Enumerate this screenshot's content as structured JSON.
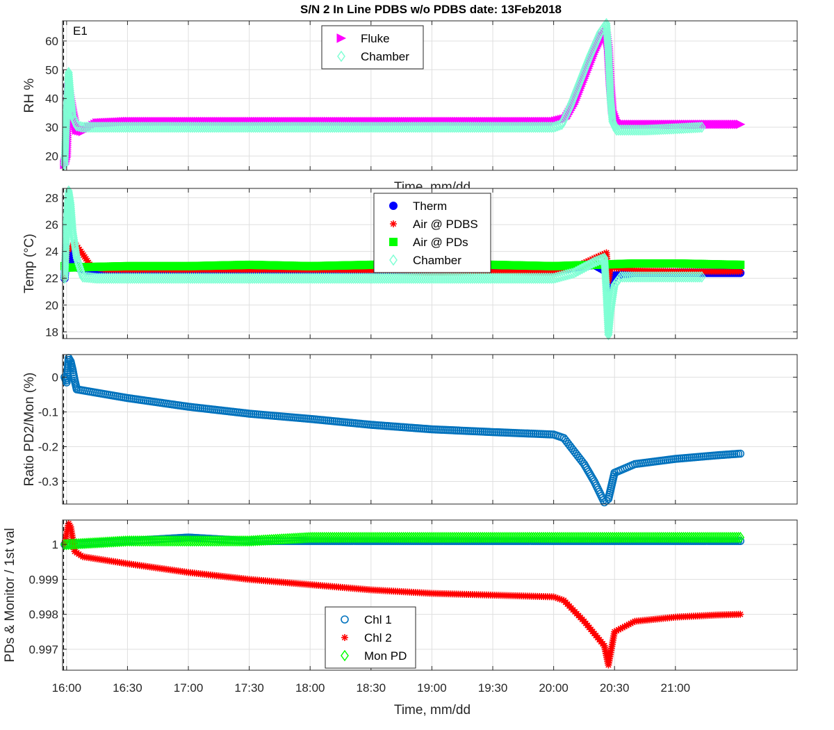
{
  "figure": {
    "title": "S/N 2 In Line PDBS w/o PDBS date: 13Feb2018",
    "xlabel": "Time, mm/dd",
    "xticks": [
      "16:00",
      "16:30",
      "17:00",
      "17:30",
      "18:00",
      "18:30",
      "19:00",
      "19:30",
      "20:00",
      "20:30",
      "21:00"
    ],
    "colors": {
      "magenta": "#ff00ff",
      "aquamarine": "#7fffd4",
      "blue": "#0000ff",
      "red": "#ff0000",
      "green": "#00ff00",
      "steelblue": "#0072bd"
    }
  },
  "chart_data": [
    {
      "type": "scatter",
      "panel_label": "E1",
      "ylabel": "RH %",
      "xlabel_partial": "Time, mm/dd",
      "xlim": [
        "15:58",
        "22:00"
      ],
      "ylim": [
        15,
        67
      ],
      "yticks": [
        20,
        30,
        40,
        50,
        60
      ],
      "grid": true,
      "legend_position": "top-center",
      "series": [
        {
          "name": "Fluke",
          "marker": "triangle-right",
          "color": "#ff00ff",
          "points": [
            [
              "15:59",
              17
            ],
            [
              "16:00",
              20
            ],
            [
              "16:01",
              44
            ],
            [
              "16:02",
              40
            ],
            [
              "16:03",
              36
            ],
            [
              "16:05",
              29
            ],
            [
              "16:08",
              28.5
            ],
            [
              "16:15",
              31.5
            ],
            [
              "16:30",
              32
            ],
            [
              "17:00",
              32
            ],
            [
              "17:30",
              32
            ],
            [
              "18:00",
              32
            ],
            [
              "18:30",
              32
            ],
            [
              "19:00",
              32
            ],
            [
              "19:30",
              32
            ],
            [
              "20:00",
              32
            ],
            [
              "20:06",
              33
            ],
            [
              "20:10",
              38
            ],
            [
              "20:15",
              47
            ],
            [
              "20:20",
              56
            ],
            [
              "20:24",
              62
            ],
            [
              "20:26",
              63
            ],
            [
              "20:27",
              58
            ],
            [
              "20:28",
              45
            ],
            [
              "20:29",
              36
            ],
            [
              "20:31",
              32
            ],
            [
              "20:35",
              31
            ],
            [
              "21:00",
              31
            ],
            [
              "21:30",
              31
            ],
            [
              "21:32",
              31
            ]
          ]
        },
        {
          "name": "Chamber",
          "marker": "diamond-open",
          "color": "#7fffd4",
          "points": [
            [
              "15:59",
              17
            ],
            [
              "16:00",
              35
            ],
            [
              "16:01",
              49
            ],
            [
              "16:02",
              40
            ],
            [
              "16:03",
              34
            ],
            [
              "16:05",
              30.5
            ],
            [
              "16:08",
              30
            ],
            [
              "16:15",
              30
            ],
            [
              "16:30",
              30
            ],
            [
              "17:00",
              30
            ],
            [
              "17:30",
              30
            ],
            [
              "18:00",
              30
            ],
            [
              "18:30",
              30
            ],
            [
              "19:00",
              30
            ],
            [
              "19:30",
              30
            ],
            [
              "20:00",
              30
            ],
            [
              "20:04",
              31
            ],
            [
              "20:08",
              37
            ],
            [
              "20:13",
              46
            ],
            [
              "20:18",
              55
            ],
            [
              "20:23",
              63
            ],
            [
              "20:26",
              66
            ],
            [
              "20:27",
              56
            ],
            [
              "20:28",
              40
            ],
            [
              "20:29",
              32
            ],
            [
              "20:31",
              29
            ],
            [
              "20:35",
              29
            ],
            [
              "20:45",
              29
            ],
            [
              "21:00",
              29.5
            ],
            [
              "21:13",
              30
            ]
          ]
        }
      ]
    },
    {
      "type": "scatter",
      "ylabel": "Temp (°C)",
      "xlim": [
        "15:58",
        "22:00"
      ],
      "ylim": [
        17.5,
        28.7
      ],
      "yticks": [
        18,
        20,
        22,
        24,
        26,
        28
      ],
      "grid": true,
      "legend_position": "top-center",
      "series": [
        {
          "name": "Therm",
          "marker": "filled-circle",
          "color": "#0000ff",
          "points": [
            [
              "15:59",
              22
            ],
            [
              "16:00",
              24.3
            ],
            [
              "16:02",
              23.5
            ],
            [
              "16:05",
              22.8
            ],
            [
              "16:10",
              22.6
            ],
            [
              "17:00",
              22.6
            ],
            [
              "18:00",
              22.6
            ],
            [
              "19:00",
              22.6
            ],
            [
              "20:00",
              22.6
            ],
            [
              "20:20",
              23
            ],
            [
              "20:26",
              22.5
            ],
            [
              "20:27",
              21.3
            ],
            [
              "20:30",
              22.2
            ],
            [
              "20:40",
              22.4
            ],
            [
              "21:00",
              22.4
            ],
            [
              "21:32",
              22.4
            ]
          ]
        },
        {
          "name": "Air @ PDBS",
          "marker": "asterisk",
          "color": "#ff0000",
          "points": [
            [
              "15:59",
              22
            ],
            [
              "16:00",
              24
            ],
            [
              "16:04",
              24.6
            ],
            [
              "16:07",
              24
            ],
            [
              "16:12",
              22.9
            ],
            [
              "16:20",
              22.6
            ],
            [
              "17:00",
              22.6
            ],
            [
              "18:00",
              22.6
            ],
            [
              "19:00",
              22.5
            ],
            [
              "20:00",
              22.5
            ],
            [
              "20:10",
              22.8
            ],
            [
              "20:20",
              23.5
            ],
            [
              "20:26",
              23.9
            ],
            [
              "20:27",
              21.8
            ],
            [
              "20:28",
              22.8
            ],
            [
              "20:40",
              22.6
            ],
            [
              "21:00",
              22.5
            ],
            [
              "21:32",
              22.5
            ]
          ]
        },
        {
          "name": "Air @ PDs",
          "marker": "filled-square",
          "color": "#00ff00",
          "points": [
            [
              "15:59",
              22.9
            ],
            [
              "16:00",
              22.8
            ],
            [
              "16:30",
              22.9
            ],
            [
              "17:00",
              22.9
            ],
            [
              "17:30",
              23
            ],
            [
              "18:00",
              22.9
            ],
            [
              "18:30",
              23
            ],
            [
              "19:00",
              23
            ],
            [
              "19:30",
              23
            ],
            [
              "20:00",
              22.9
            ],
            [
              "20:20",
              23
            ],
            [
              "20:40",
              23.1
            ],
            [
              "21:00",
              23.1
            ],
            [
              "21:32",
              23
            ]
          ]
        },
        {
          "name": "Chamber",
          "marker": "diamond-open",
          "color": "#7fffd4",
          "points": [
            [
              "15:59",
              22
            ],
            [
              "16:00",
              26
            ],
            [
              "16:01",
              28.5
            ],
            [
              "16:02",
              27.5
            ],
            [
              "16:03",
              25.5
            ],
            [
              "16:05",
              23.5
            ],
            [
              "16:08",
              22.1
            ],
            [
              "16:15",
              22
            ],
            [
              "17:00",
              22
            ],
            [
              "18:00",
              22
            ],
            [
              "19:00",
              22
            ],
            [
              "19:30",
              22
            ],
            [
              "20:00",
              22
            ],
            [
              "20:10",
              22.4
            ],
            [
              "20:20",
              23.2
            ],
            [
              "20:25",
              23.5
            ],
            [
              "20:26",
              21
            ],
            [
              "20:27",
              17.8
            ],
            [
              "20:28",
              19.5
            ],
            [
              "20:30",
              21.5
            ],
            [
              "20:33",
              22.1
            ],
            [
              "20:45",
              22.1
            ],
            [
              "21:00",
              22.1
            ],
            [
              "21:13",
              22.1
            ]
          ]
        }
      ]
    },
    {
      "type": "scatter",
      "ylabel": "Ratio PD2/Mon (%)",
      "xlim": [
        "15:58",
        "22:00"
      ],
      "ylim": [
        -0.365,
        0.065
      ],
      "yticks": [
        0,
        -0.1,
        -0.2,
        -0.3
      ],
      "grid": true,
      "series": [
        {
          "name": "",
          "marker": "circle-open",
          "color": "#0072bd",
          "points": [
            [
              "15:59",
              0
            ],
            [
              "16:00",
              -0.015
            ],
            [
              "16:01",
              0.055
            ],
            [
              "16:02",
              0.045
            ],
            [
              "16:03",
              0.02
            ],
            [
              "16:04",
              -0.01
            ],
            [
              "16:05",
              -0.035
            ],
            [
              "16:10",
              -0.04
            ],
            [
              "16:30",
              -0.06
            ],
            [
              "17:00",
              -0.085
            ],
            [
              "17:30",
              -0.105
            ],
            [
              "18:00",
              -0.12
            ],
            [
              "18:30",
              -0.137
            ],
            [
              "19:00",
              -0.15
            ],
            [
              "19:30",
              -0.158
            ],
            [
              "20:00",
              -0.165
            ],
            [
              "20:05",
              -0.175
            ],
            [
              "20:15",
              -0.25
            ],
            [
              "20:20",
              -0.3
            ],
            [
              "20:25",
              -0.36
            ],
            [
              "20:27",
              -0.35
            ],
            [
              "20:30",
              -0.275
            ],
            [
              "20:40",
              -0.25
            ],
            [
              "21:00",
              -0.235
            ],
            [
              "21:20",
              -0.225
            ],
            [
              "21:32",
              -0.22
            ]
          ]
        }
      ]
    },
    {
      "type": "scatter",
      "ylabel": "PDs & Monitor / 1st val",
      "xlim": [
        "15:58",
        "22:00"
      ],
      "ylim": [
        0.9964,
        1.0007
      ],
      "yticks": [
        0.997,
        0.998,
        0.999,
        1
      ],
      "grid": true,
      "legend_position": "bottom-center",
      "series": [
        {
          "name": "Chl 1",
          "marker": "circle-open",
          "color": "#0072bd",
          "points": [
            [
              "15:59",
              1
            ],
            [
              "16:00",
              1
            ],
            [
              "16:30",
              1.0001
            ],
            [
              "17:00",
              1.0002
            ],
            [
              "17:30",
              1.0001
            ],
            [
              "18:00",
              1.0001
            ],
            [
              "18:30",
              1.0001
            ],
            [
              "19:00",
              1.0001
            ],
            [
              "19:30",
              1.0001
            ],
            [
              "20:00",
              1.0001
            ],
            [
              "20:30",
              1.0001
            ],
            [
              "21:00",
              1.0001
            ],
            [
              "21:32",
              1.0001
            ]
          ]
        },
        {
          "name": "Chl 2",
          "marker": "asterisk",
          "color": "#ff0000",
          "points": [
            [
              "15:59",
              1
            ],
            [
              "16:01",
              1.0006
            ],
            [
              "16:02",
              1.0005
            ],
            [
              "16:04",
              0.9998
            ],
            [
              "16:08",
              0.99965
            ],
            [
              "16:30",
              0.99945
            ],
            [
              "17:00",
              0.9992
            ],
            [
              "17:30",
              0.999
            ],
            [
              "18:00",
              0.99885
            ],
            [
              "18:30",
              0.9987
            ],
            [
              "19:00",
              0.9986
            ],
            [
              "19:30",
              0.99855
            ],
            [
              "20:00",
              0.9985
            ],
            [
              "20:05",
              0.9984
            ],
            [
              "20:15",
              0.9978
            ],
            [
              "20:25",
              0.9971
            ],
            [
              "20:27",
              0.99655
            ],
            [
              "20:30",
              0.9975
            ],
            [
              "20:40",
              0.9978
            ],
            [
              "21:00",
              0.99792
            ],
            [
              "21:20",
              0.99798
            ],
            [
              "21:32",
              0.998
            ]
          ]
        },
        {
          "name": "Mon PD",
          "marker": "diamond-open",
          "color": "#00ff00",
          "points": [
            [
              "15:59",
              1
            ],
            [
              "16:00",
              1
            ],
            [
              "16:30",
              1.0001
            ],
            [
              "17:00",
              1.0001
            ],
            [
              "17:30",
              1.0001
            ],
            [
              "18:00",
              1.0002
            ],
            [
              "18:30",
              1.0002
            ],
            [
              "19:00",
              1.0002
            ],
            [
              "19:30",
              1.0002
            ],
            [
              "20:00",
              1.0002
            ],
            [
              "20:30",
              1.0002
            ],
            [
              "21:00",
              1.0002
            ],
            [
              "21:32",
              1.0002
            ]
          ]
        }
      ]
    }
  ]
}
